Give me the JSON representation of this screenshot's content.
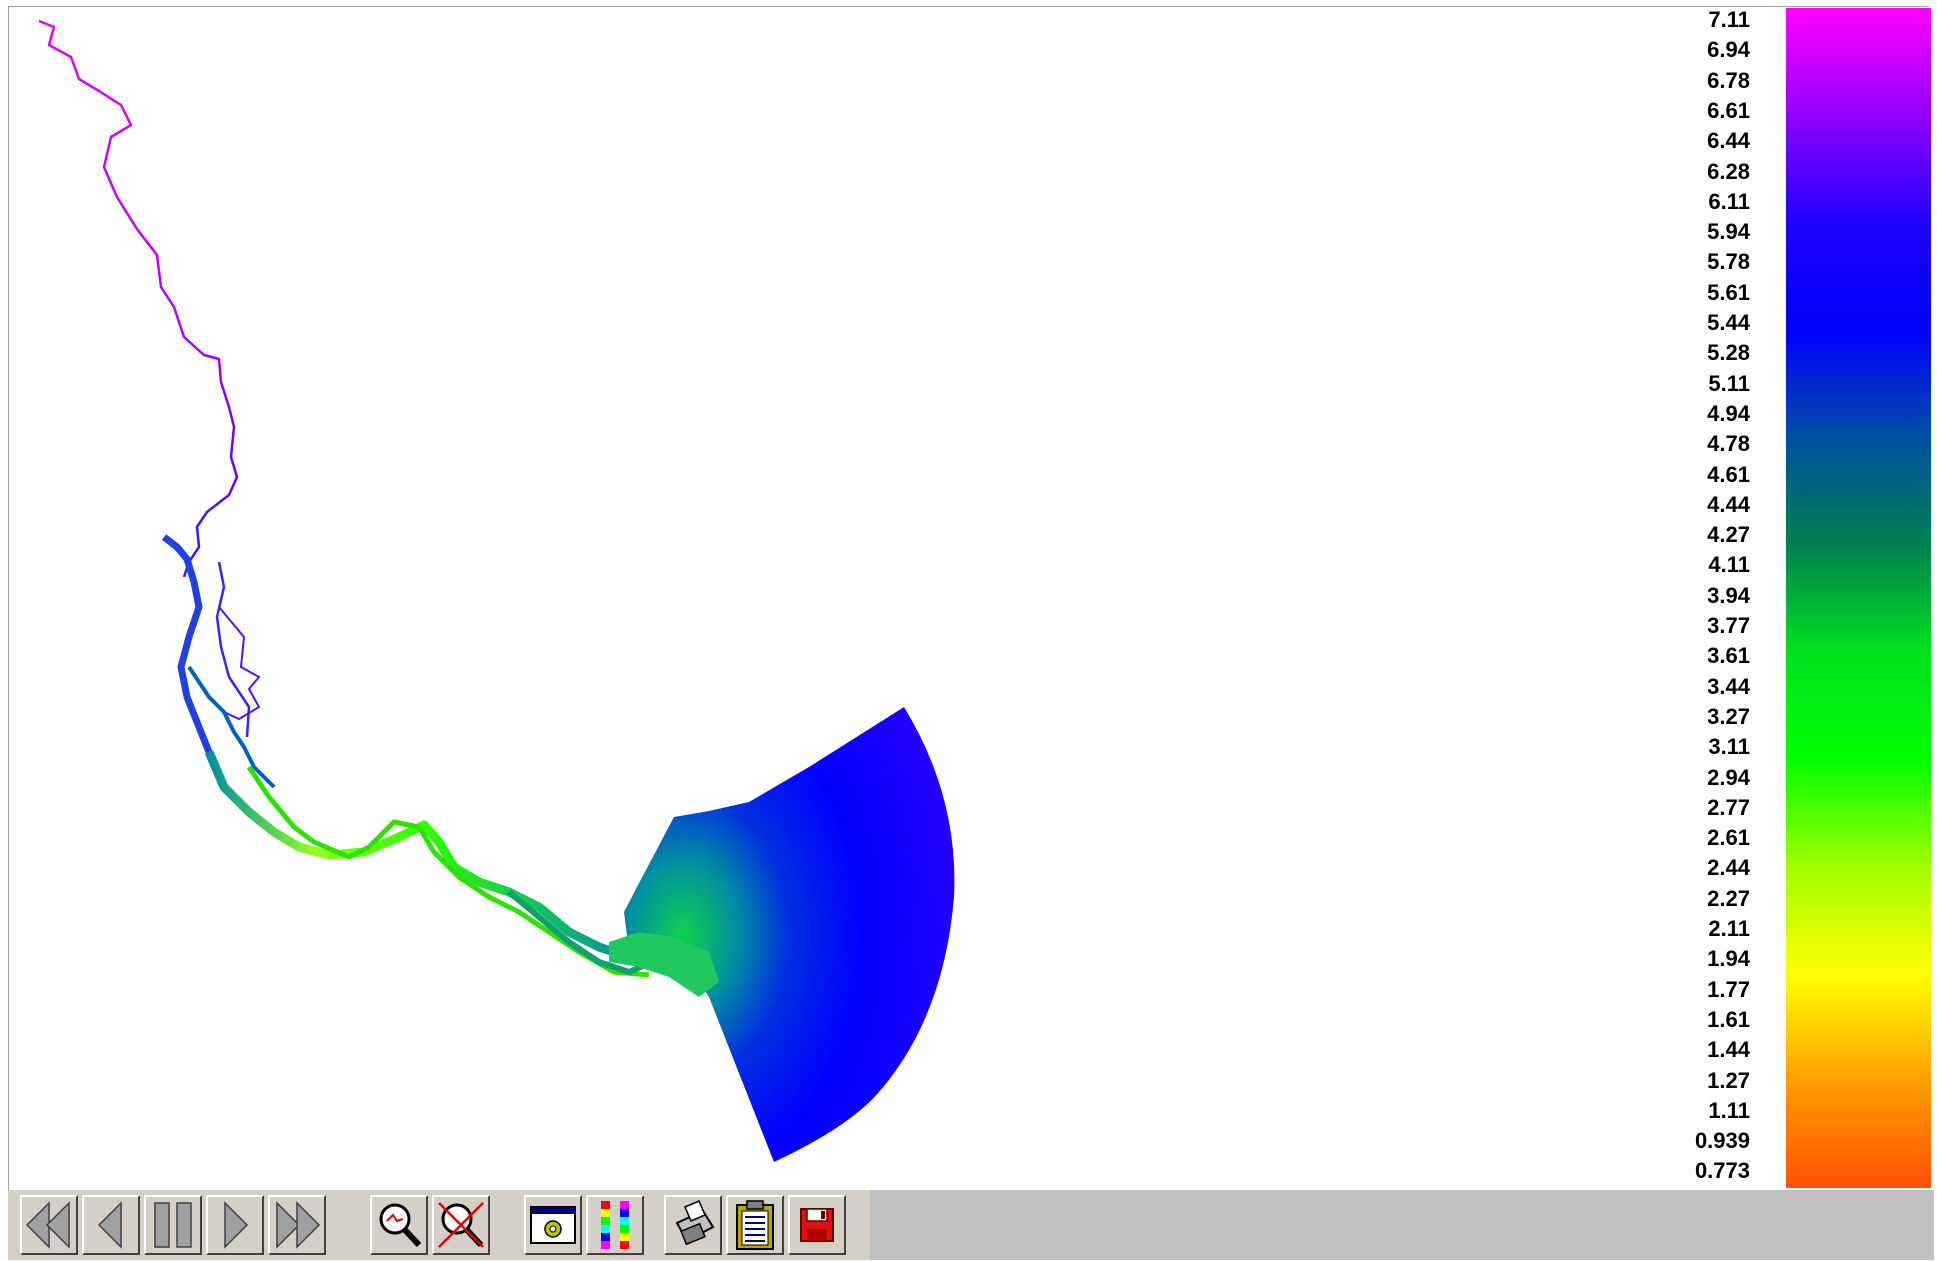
{
  "colors": {
    "background": "#ffffff",
    "toolbar_bg": "#c0c0c0",
    "button_face": "#d4d0c8",
    "field_deep": "#2a10ff",
    "field_mid": "#0028ff"
  },
  "legend": {
    "labels": [
      "7.11",
      "6.94",
      "6.78",
      "6.61",
      "6.44",
      "6.28",
      "6.11",
      "5.94",
      "5.78",
      "5.61",
      "5.44",
      "5.28",
      "5.11",
      "4.94",
      "4.78",
      "4.61",
      "4.44",
      "4.27",
      "4.11",
      "3.94",
      "3.77",
      "3.61",
      "3.44",
      "3.27",
      "3.11",
      "2.94",
      "2.77",
      "2.61",
      "2.44",
      "2.27",
      "2.11",
      "1.94",
      "1.77",
      "1.61",
      "1.44",
      "1.27",
      "1.11",
      "0.939",
      "0.773"
    ],
    "max": 7.11,
    "min": 0.773,
    "colormap": [
      "#ff00ff",
      "#9000ff",
      "#2000ff",
      "#0000ff",
      "#0050a0",
      "#008050",
      "#00e020",
      "#00ff00",
      "#a0ff00",
      "#ffff00",
      "#ffa000",
      "#ff5000"
    ]
  },
  "toolbar": {
    "buttons": [
      {
        "name": "first-frame-button",
        "icon": "double-left-arrow-icon"
      },
      {
        "name": "previous-frame-button",
        "icon": "left-arrow-icon"
      },
      {
        "name": "pause-button",
        "icon": "pause-icon"
      },
      {
        "name": "next-frame-button",
        "icon": "right-arrow-icon"
      },
      {
        "name": "last-frame-button",
        "icon": "double-right-arrow-icon"
      },
      {
        "name": "zoom-button",
        "icon": "magnifier-icon"
      },
      {
        "name": "zoom-reset-button",
        "icon": "magnifier-cancel-icon"
      },
      {
        "name": "settings-button",
        "icon": "window-gear-icon"
      },
      {
        "name": "colormap-button",
        "icon": "color-scale-icon"
      },
      {
        "name": "print-button",
        "icon": "printer-icon"
      },
      {
        "name": "clipboard-button",
        "icon": "clipboard-icon"
      },
      {
        "name": "save-button",
        "icon": "floppy-disk-icon"
      }
    ]
  }
}
